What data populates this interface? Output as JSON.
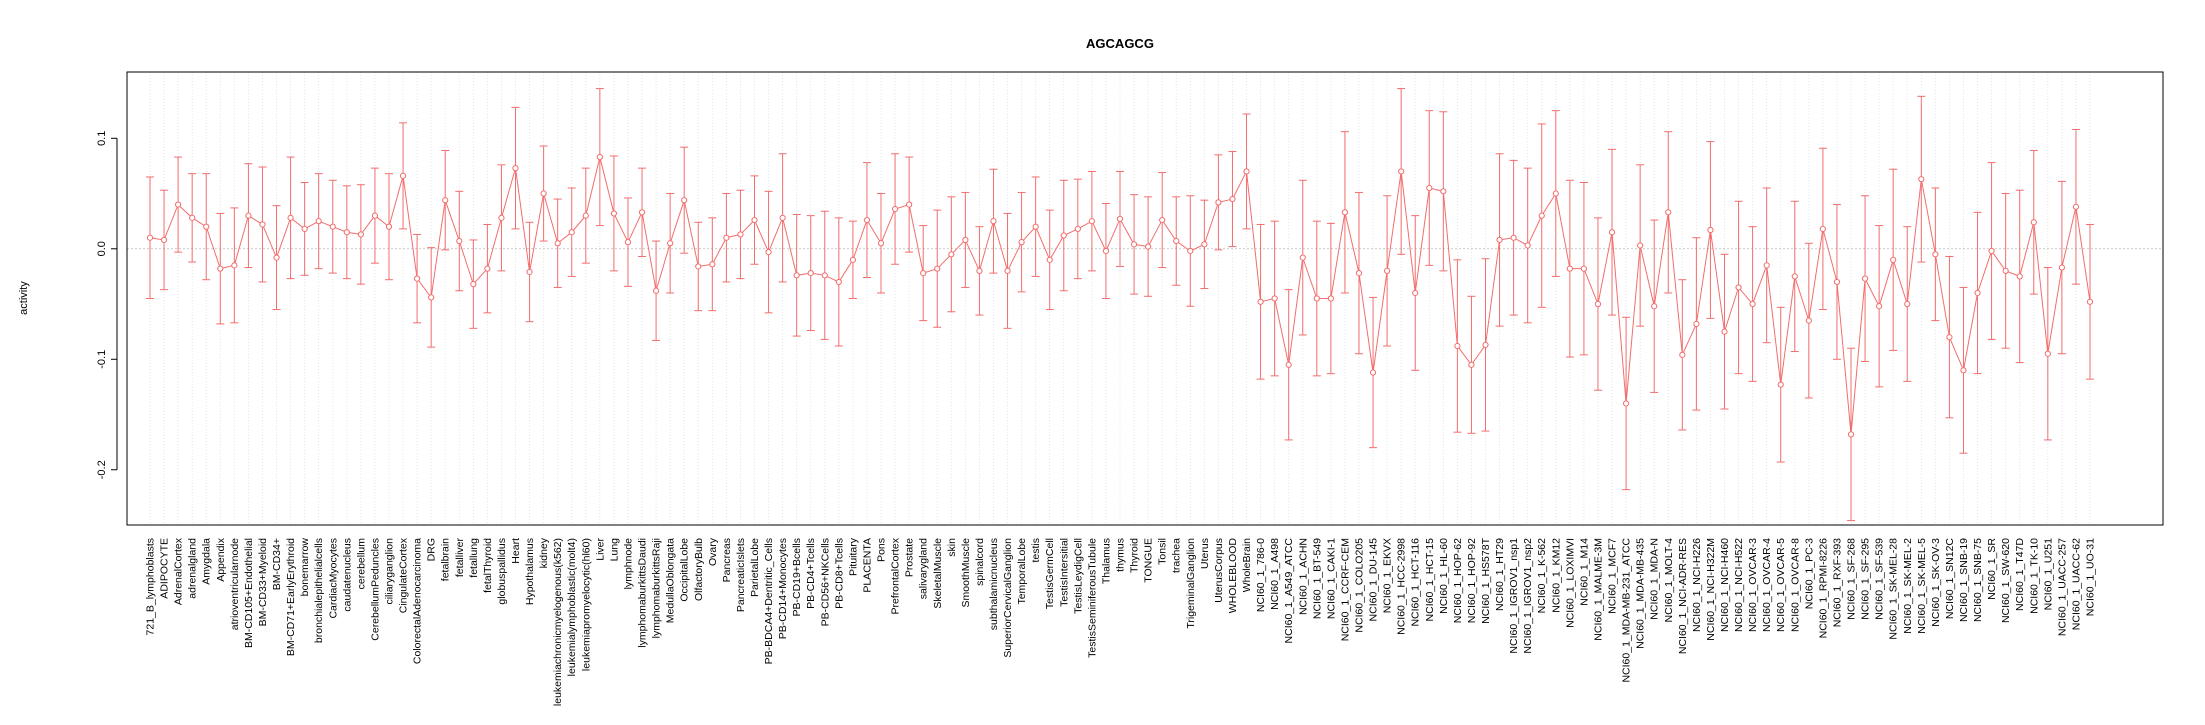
{
  "chart_data": {
    "type": "line",
    "title": "AGCAGCG",
    "xlabel": "",
    "ylabel": "activity",
    "ylim": [
      -0.25,
      0.16
    ],
    "yticks": [
      0.1,
      0.0,
      -0.1,
      -0.2
    ],
    "ytick_labels": [
      "0.1",
      "0.0",
      "-0.1",
      "-0.2"
    ],
    "grid": true,
    "reference_line": 0.0,
    "line_color": "#f26d6d",
    "grid_color": "#dddddd",
    "categories": [
      "721_B_lymphoblasts",
      "ADIPOCYTE",
      "AdrenalCortex",
      "adrenalgland",
      "Amygdala",
      "Appendix",
      "atrioventricularnode",
      "BM-CD105+Endothelial",
      "BM-CD33+Myeloid",
      "BM-CD34+",
      "BM-CD71+EarlyErythroid",
      "bonemarrow",
      "bronchialepithelialcells",
      "CardiacMyocytes",
      "caudatenucleus",
      "cerebellum",
      "CerebellumPeduncles",
      "ciliaryganglion",
      "CingulateCortex",
      "ColorectalAdenocarcinoma",
      "DRG",
      "fetalbrain",
      "fetalliver",
      "fetallung",
      "fetalThyroid",
      "globuspallidus",
      "Heart",
      "Hypothalamus",
      "kidney",
      "leukemiachronicmyelogenous(k562)",
      "leukemialymphoblastic(molt4)",
      "leukemiapromyelocytic(hl60)",
      "Liver",
      "Lung",
      "lymphnode",
      "lymphomaburkittsDaudi",
      "lymphomaburkittsRaji",
      "MedullaOblongata",
      "OccipitalLobe",
      "OlfactoryBulb",
      "Ovary",
      "Pancreas",
      "PancreaticIslets",
      "ParietalLobe",
      "PB-BDCA4+Dentritic_Cells",
      "PB-CD14+Monocytes",
      "PB-CD19+Bcells",
      "PB-CD4+Tcells",
      "PB-CD56+NKCells",
      "PB-CD8+Tcells",
      "Pituitary",
      "PLACENTA",
      "Pons",
      "PrefrontalCortex",
      "Prostate",
      "salivarygland",
      "SkeletalMuscle",
      "skin",
      "SmoothMuscle",
      "spinalcord",
      "subthalamicnucleus",
      "SuperiorCervicalGanglion",
      "TemporalLobe",
      "testis",
      "TestisGermCell",
      "TestisIntersitial",
      "TestisLeydigCell",
      "TestisSeminiferousTubule",
      "Thalamus",
      "thymus",
      "Thyroid",
      "TONGUE",
      "Tonsil",
      "trachea",
      "TrigeminalGanglion",
      "Uterus",
      "UterusCorpus",
      "WHOLEBLOOD",
      "WholeBrain",
      "NCI60_1_786-0",
      "NCI60_1_A498",
      "NCI60_1_A549_ATCC",
      "NCI60_1_ACHN",
      "NCI60_1_BT-549",
      "NCI60_1_CAKI-1",
      "NCI60_1_CCRF-CEM",
      "NCI60_1_COLO205",
      "NCI60_1_DU-145",
      "NCI60_1_EKVX",
      "NCI60_1_HCC-2998",
      "NCI60_1_HCT-116",
      "NCI60_1_HCT-15",
      "NCI60_1_HL-60",
      "NCI60_1_HOP-62",
      "NCI60_1_HOP-92",
      "NCI60_1_HS578T",
      "NCI60_1_HT29",
      "NCI60_1_IGROV1_nsp1",
      "NCI60_1_IGROV1_nsp2",
      "NCI60_1_K-562",
      "NCI60_1_KM12",
      "NCI60_1_LOXIMVI",
      "NCI60_1_M14",
      "NCI60_1_MALME-3M",
      "NCI60_1_MCF7",
      "NCI60_1_MDA-MB-231_ATCC",
      "NCI60_1_MDA-MB-435",
      "NCI60_1_MDA-N",
      "NCI60_1_MOLT-4",
      "NCI60_1_NCI-ADR-RES",
      "NCI60_1_NCI-H226",
      "NCI60_1_NCI-H322M",
      "NCI60_1_NCI-H460",
      "NCI60_1_NCI-H522",
      "NCI60_1_OVCAR-3",
      "NCI60_1_OVCAR-4",
      "NCI60_1_OVCAR-5",
      "NCI60_1_OVCAR-8",
      "NCI60_1_PC-3",
      "NCI60_1_RPMI-8226",
      "NCI60_1_RXF-393",
      "NCI60_1_SF-268",
      "NCI60_1_SF-295",
      "NCI60_1_SF-539",
      "NCI60_1_SK-MEL-28",
      "NCI60_1_SK-MEL-2",
      "NCI60_1_SK-MEL-5",
      "NCI60_1_SK-OV-3",
      "NCI60_1_SN12C",
      "NCI60_1_SNB-19",
      "NCI60_1_SNB-75",
      "NCI60_1_SR",
      "NCI60_1_SW-620",
      "NCI60_1_T47D",
      "NCI60_1_TK-10",
      "NCI60_1_U251",
      "NCI60_1_UACC-257",
      "NCI60_1_UACC-62",
      "NCI60_1_UO-31"
    ],
    "values": [
      0.01,
      0.008,
      0.04,
      0.028,
      0.02,
      -0.018,
      -0.015,
      0.03,
      0.022,
      -0.008,
      0.028,
      0.018,
      0.025,
      0.02,
      0.015,
      0.013,
      0.03,
      0.02,
      0.066,
      -0.027,
      -0.044,
      0.044,
      0.007,
      -0.032,
      -0.018,
      0.028,
      0.073,
      -0.021,
      0.05,
      0.005,
      0.015,
      0.03,
      0.083,
      0.032,
      0.006,
      0.033,
      -0.038,
      0.005,
      0.044,
      -0.016,
      -0.014,
      0.01,
      0.013,
      0.026,
      -0.003,
      0.028,
      -0.024,
      -0.022,
      -0.024,
      -0.03,
      -0.01,
      0.026,
      0.005,
      0.036,
      0.04,
      -0.022,
      -0.018,
      -0.005,
      0.008,
      -0.02,
      0.025,
      -0.02,
      0.006,
      0.02,
      -0.01,
      0.012,
      0.018,
      0.025,
      -0.002,
      0.027,
      0.004,
      0.002,
      0.026,
      0.007,
      -0.002,
      0.004,
      0.042,
      0.045,
      0.07,
      -0.048,
      -0.045,
      -0.105,
      -0.008,
      -0.045,
      -0.045,
      0.033,
      -0.022,
      -0.112,
      -0.02,
      0.07,
      -0.04,
      0.055,
      0.052,
      -0.088,
      -0.105,
      -0.087,
      0.008,
      0.01,
      0.003,
      0.03,
      0.05,
      -0.018,
      -0.018,
      -0.05,
      0.015,
      -0.14,
      0.003,
      -0.052,
      0.033,
      -0.096,
      -0.068,
      0.017,
      -0.075,
      -0.035,
      -0.05,
      -0.015,
      -0.123,
      -0.025,
      -0.065,
      0.018,
      -0.03,
      -0.168,
      -0.027,
      -0.052,
      -0.01,
      -0.05,
      0.063,
      -0.005,
      -0.08,
      -0.11,
      -0.04,
      -0.002,
      -0.02,
      -0.025,
      0.024,
      -0.095,
      -0.017,
      0.038,
      -0.048
    ],
    "error": [
      0.055,
      0.045,
      0.043,
      0.04,
      0.048,
      0.05,
      0.052,
      0.047,
      0.052,
      0.047,
      0.055,
      0.042,
      0.043,
      0.042,
      0.042,
      0.045,
      0.043,
      0.048,
      0.048,
      0.04,
      0.045,
      0.045,
      0.045,
      0.04,
      0.04,
      0.048,
      0.055,
      0.045,
      0.043,
      0.04,
      0.04,
      0.043,
      0.062,
      0.052,
      0.04,
      0.04,
      0.045,
      0.045,
      0.048,
      0.04,
      0.042,
      0.04,
      0.04,
      0.04,
      0.055,
      0.058,
      0.055,
      0.052,
      0.058,
      0.058,
      0.035,
      0.052,
      0.045,
      0.05,
      0.043,
      0.043,
      0.053,
      0.052,
      0.043,
      0.04,
      0.047,
      0.052,
      0.045,
      0.045,
      0.045,
      0.05,
      0.045,
      0.045,
      0.043,
      0.043,
      0.045,
      0.045,
      0.043,
      0.04,
      0.05,
      0.04,
      0.043,
      0.043,
      0.052,
      0.07,
      0.07,
      0.068,
      0.07,
      0.07,
      0.068,
      0.073,
      0.073,
      0.068,
      0.068,
      0.075,
      0.07,
      0.07,
      0.072,
      0.078,
      0.062,
      0.078,
      0.078,
      0.07,
      0.07,
      0.083,
      0.075,
      0.08,
      0.078,
      0.078,
      0.075,
      0.078,
      0.073,
      0.078,
      0.073,
      0.068,
      0.078,
      0.08,
      0.07,
      0.078,
      0.07,
      0.07,
      0.07,
      0.068,
      0.07,
      0.073,
      0.07,
      0.078,
      0.075,
      0.073,
      0.082,
      0.07,
      0.075,
      0.06,
      0.073,
      0.075,
      0.073,
      0.08,
      0.07,
      0.078,
      0.065,
      0.078,
      0.078,
      0.07,
      0.07
    ]
  }
}
